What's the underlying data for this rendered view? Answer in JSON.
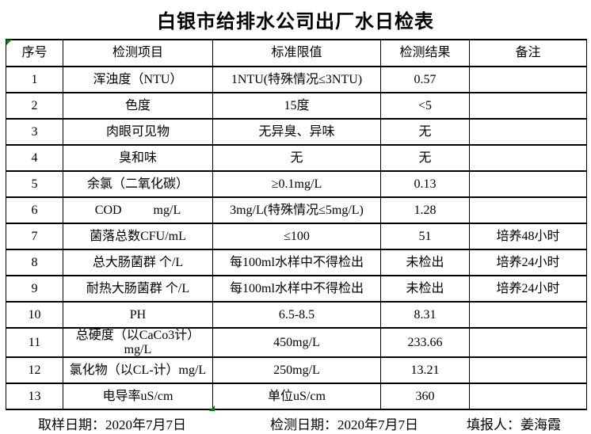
{
  "page": {
    "title": "白银市给排水公司出厂水日检表"
  },
  "colors": {
    "border": "#000000",
    "cell_indicator_green": "#008000",
    "background": "#ffffff",
    "text": "#000000"
  },
  "table": {
    "headers": [
      "序号",
      "检测项目",
      "标准限值",
      "检测结果",
      "备注"
    ],
    "rows": [
      {
        "no": "1",
        "item": "浑浊度（NTU）",
        "limit": "1NTU(特殊情况≤3NTU)",
        "result": "0.57",
        "note": ""
      },
      {
        "no": "2",
        "item": "色度",
        "limit": "15度",
        "result": "<5",
        "note": ""
      },
      {
        "no": "3",
        "item": "肉眼可见物",
        "limit": "无异臭、异味",
        "result": "无",
        "note": ""
      },
      {
        "no": "4",
        "item": "臭和味",
        "limit": "无",
        "result": "无",
        "note": ""
      },
      {
        "no": "5",
        "item": "余氯（二氧化碳）",
        "limit": "≥0.1mg/L",
        "result": "0.13",
        "note": ""
      },
      {
        "no": "6",
        "item": "COD          mg/L",
        "limit": "3mg/L(特殊情况≤5mg/L)",
        "result": "1.28",
        "note": ""
      },
      {
        "no": "7",
        "item": "菌落总数CFU/mL",
        "limit": "≤100",
        "result": "51",
        "note": "培养48小时"
      },
      {
        "no": "8",
        "item": "总大肠菌群 个/L",
        "limit": "每100ml水样中不得检出",
        "result": "未检出",
        "note": "培养24小时"
      },
      {
        "no": "9",
        "item": "耐热大肠菌群 个/L",
        "limit": "每100ml水样中不得检出",
        "result": "未检出",
        "note": "培养24小时"
      },
      {
        "no": "10",
        "item": "PH",
        "limit": "6.5-8.5",
        "result": "8.31",
        "note": ""
      },
      {
        "no": "11",
        "item": "总硬度（以CaCo3计）mg/L",
        "limit": "450mg/L",
        "result": "233.66",
        "note": ""
      },
      {
        "no": "12",
        "item": "氯化物（以CL-计）mg/L",
        "limit": "250mg/L",
        "result": "13.21",
        "note": ""
      },
      {
        "no": "13",
        "item": "电导率uS/cm",
        "limit": "单位uS/cm",
        "result": "360",
        "note": ""
      }
    ]
  },
  "footer": {
    "sampling": "取样日期：2020年7月7日",
    "testing": "检测日期：2020年7月7日",
    "reporter": "填报人：姜海霞"
  }
}
